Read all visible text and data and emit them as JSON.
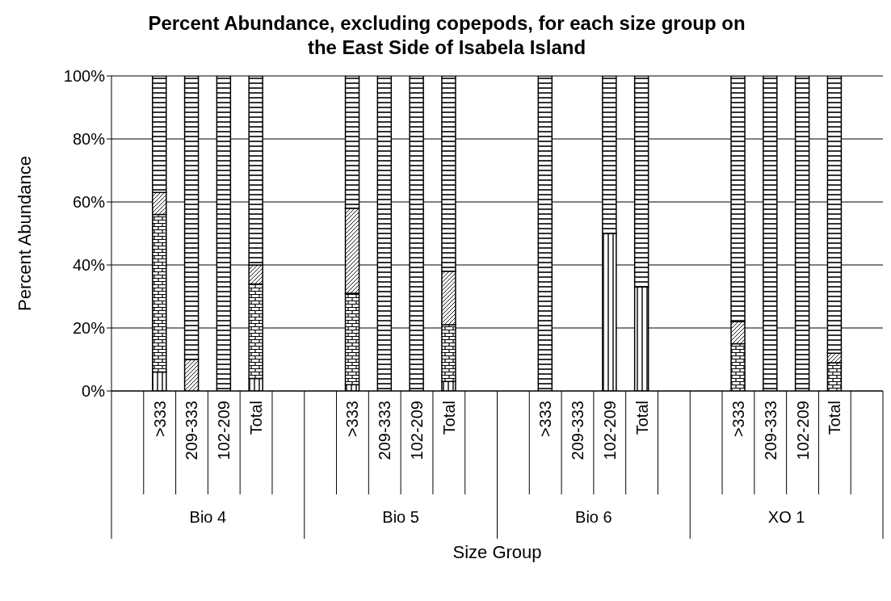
{
  "chart_data": {
    "type": "bar",
    "stacked": true,
    "title": "Percent Abundance, excluding copepods, for each size group on the East Side of Isabela Island",
    "xlabel": "Size Group",
    "ylabel": "Percent Abundance",
    "categories": [
      null,
      ">333",
      "209-333",
      "102-209",
      "Total",
      null,
      null,
      ">333",
      "209-333",
      "102-209",
      "Total",
      null,
      null,
      ">333",
      "209-333",
      "102-209",
      "Total",
      null,
      null,
      ">333",
      "209-333",
      "102-209",
      "Total",
      null
    ],
    "annotations": [
      "Bio 4",
      "Bio 5",
      "Bio 6",
      "XO 1"
    ],
    "series": [
      {
        "color": "#000000",
        "values": [
          null,
          6,
          0,
          0,
          4,
          null,
          null,
          2,
          0,
          0,
          3,
          null,
          null,
          0,
          null,
          50,
          33,
          null,
          null,
          null,
          0,
          0,
          null,
          null
        ]
      },
      {
        "color": "#000000",
        "values": [
          null,
          50,
          0,
          0,
          30,
          null,
          null,
          29,
          0,
          0,
          18,
          null,
          null,
          0,
          null,
          0,
          0,
          null,
          null,
          15,
          0,
          0,
          9,
          null
        ]
      },
      {
        "color": "#000000",
        "values": [
          null,
          7,
          10,
          0,
          6,
          null,
          null,
          27,
          0,
          0,
          17,
          null,
          null,
          0,
          null,
          0,
          0,
          null,
          null,
          7,
          0,
          0,
          3,
          null
        ]
      },
      {
        "color": "#000000",
        "values": [
          null,
          37,
          90,
          100,
          60,
          null,
          null,
          42,
          100,
          100,
          62,
          null,
          null,
          100,
          null,
          50,
          67,
          null,
          null,
          78,
          100,
          100,
          88,
          null
        ]
      }
    ],
    "ylim": [
      0,
      100
    ],
    "yticks": [
      {
        "value": 0,
        "label": "0%"
      },
      {
        "value": 20,
        "label": "20%"
      },
      {
        "value": 40,
        "label": "40%"
      },
      {
        "value": 60,
        "label": "60%"
      },
      {
        "value": 80,
        "label": "80%"
      },
      {
        "value": 100,
        "label": "100%"
      }
    ],
    "grid": "y"
  }
}
